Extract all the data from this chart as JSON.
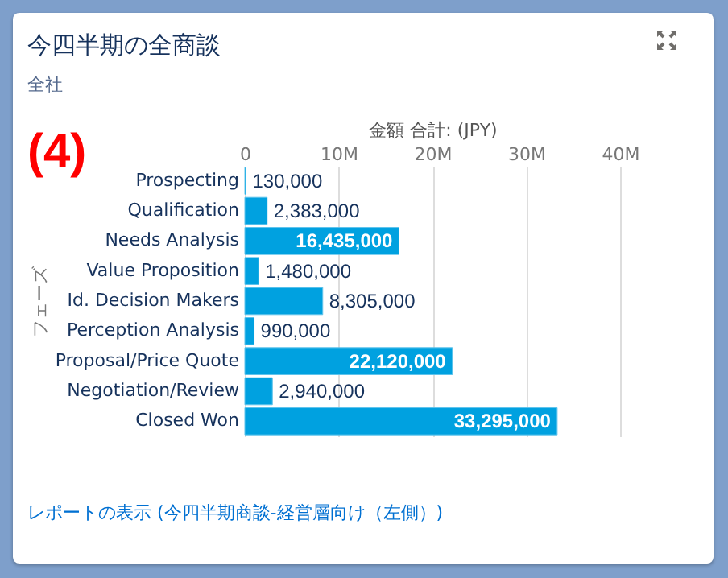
{
  "chart_data": {
    "type": "bar",
    "orientation": "horizontal",
    "title": "今四半期の全商談",
    "subtitle": "全社",
    "xlabel": "金額 合計: (JPY)",
    "ylabel": "フェーズ",
    "annotations": [
      "(4)",
      "レポートの表示 (今四半期商談-経営層向け（左側）)"
    ],
    "categories": [
      "Prospecting",
      "Qualification",
      "Needs Analysis",
      "Value Proposition",
      "Id. Decision Makers",
      "Perception Analysis",
      "Proposal/Price Quote",
      "Negotiation/Review",
      "Closed Won"
    ],
    "values": [
      130000,
      2383000,
      16435000,
      1480000,
      8305000,
      990000,
      22120000,
      2940000,
      33295000
    ],
    "value_labels": [
      "130,000",
      "2,383,000",
      "16,435,000",
      "1,480,000",
      "8,305,000",
      "990,000",
      "22,120,000",
      "2,940,000",
      "33,295,000"
    ],
    "color": "#00a1e0",
    "xlim": [
      0,
      40000000
    ],
    "xticks": [
      0,
      {
        "value": 10000000,
        "label": "10M"
      },
      {
        "value": 20000000,
        "label": "20M"
      },
      {
        "value": 30000000,
        "label": "30M"
      },
      {
        "value": 40000000,
        "label": "40M"
      }
    ],
    "grid": "x"
  }
}
